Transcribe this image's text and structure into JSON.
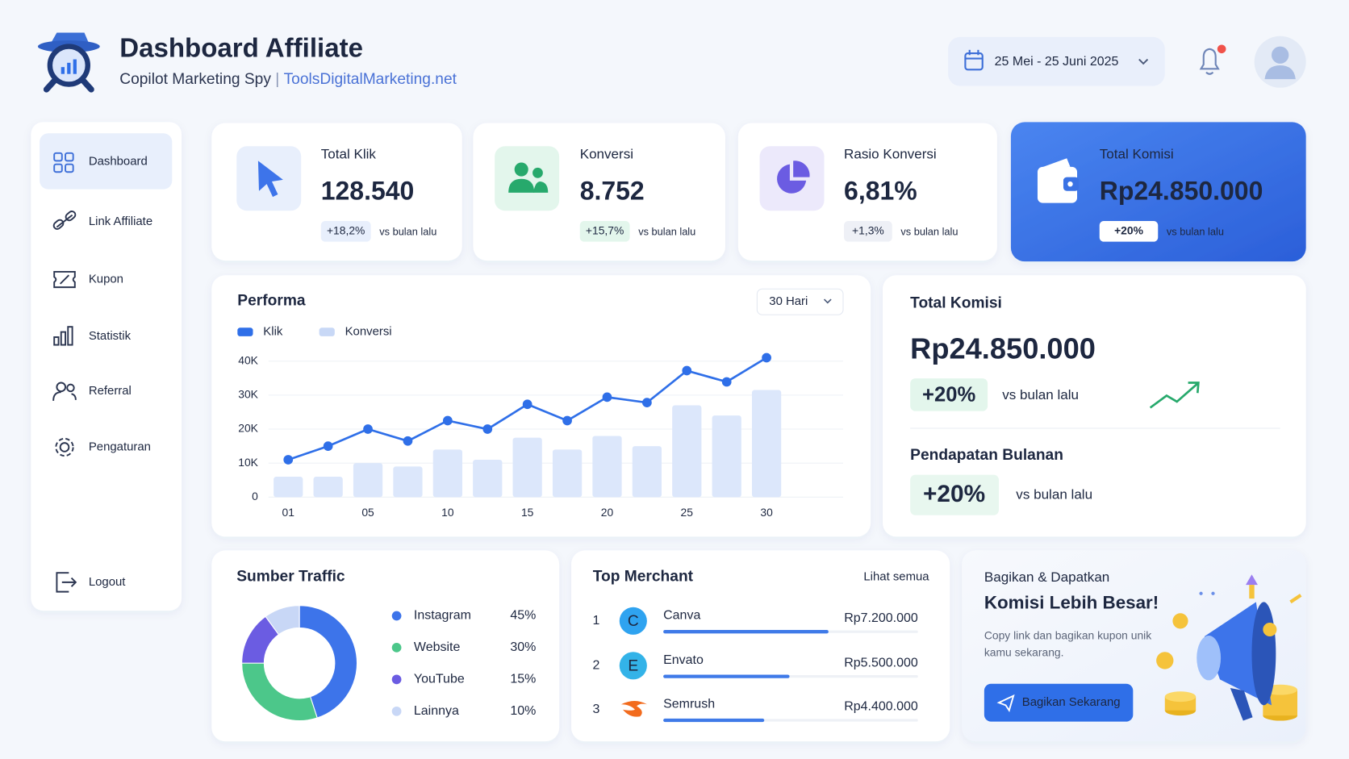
{
  "header": {
    "title": "Dashboard Affiliate",
    "subtitle": "Copilot Marketing Spy",
    "separator": "|",
    "site": "ToolsDigitalMarketing.net",
    "date_range": "25 Mei - 25 Juni 2025"
  },
  "sidebar": {
    "items": [
      "Dashboard",
      "Link Affiliate",
      "Kupon",
      "Statistik",
      "Referral",
      "Pengaturan"
    ],
    "logout": "Logout"
  },
  "stats": [
    {
      "label": "Total Klik",
      "value": "128.540",
      "change": "+18,2%",
      "note": "vs bulan lalu"
    },
    {
      "label": "Konversi",
      "value": "8.752",
      "change": "+15,7%",
      "note": "vs bulan lalu"
    },
    {
      "label": "Rasio Konversi",
      "value": "6,81%",
      "change": "+1,3%",
      "note": "vs bulan lalu"
    },
    {
      "label": "Total Komisi",
      "value": "Rp24.850.000",
      "change": "+20%",
      "note": "vs bulan lalu"
    }
  ],
  "commission": {
    "title": "Total Komisi",
    "value": "Rp24.850.000",
    "change": "+20%",
    "note": "vs bulan lalu",
    "monthly_title": "Pendapatan Bulanan",
    "monthly_change": "+20%",
    "monthly_note": "vs bulan lalu"
  },
  "promo": {
    "kicker": "Bagikan & Dapatkan",
    "title": "Komisi Lebih Besar!",
    "text": "Copy link dan bagikan kupon unik kamu sekarang.",
    "button": "Bagikan Sekarang"
  },
  "chart_data": [
    {
      "type": "combo",
      "title": "Performa",
      "range": "30 Hari",
      "categories": [
        "01",
        null,
        "05",
        null,
        "10",
        null,
        "15",
        null,
        "20",
        null,
        "25",
        null,
        "30"
      ],
      "series": [
        {
          "name": "Klik",
          "type": "line",
          "color": "#2f6fe8",
          "values": [
            11000,
            15000,
            20000,
            16500,
            22500,
            20000,
            27300,
            22500,
            29400,
            27800,
            37200,
            33900,
            41000
          ]
        },
        {
          "name": "Konversi",
          "type": "bar",
          "color": "#dce7fb",
          "values": [
            6000,
            6000,
            10000,
            9000,
            14000,
            11000,
            17500,
            14000,
            18000,
            15000,
            27000,
            24000,
            31500
          ]
        }
      ],
      "ylim": [
        0,
        42000
      ],
      "yticks": [
        0,
        {
          "value": 10000,
          "label": "10K"
        },
        {
          "value": 20000,
          "label": "20K"
        },
        {
          "value": 30000,
          "label": "30K"
        },
        {
          "value": 40000,
          "label": "40K"
        }
      ],
      "grid": true
    },
    {
      "type": "donut",
      "title": "Sumber Traffic",
      "categories": [
        "Instagram",
        "Website",
        "YouTube",
        "Lainnya"
      ],
      "values": [
        45,
        30,
        15,
        10
      ],
      "value_labels": [
        "45%",
        "30%",
        "15%",
        "10%"
      ],
      "colors": [
        "#3d74ea",
        "#4cc78a",
        "#6b5ce2",
        "#c8d7f6"
      ]
    },
    {
      "type": "bar",
      "orientation": "horizontal",
      "title": "Top Merchant",
      "link": "Lihat semua",
      "ranks": [
        1,
        2,
        3
      ],
      "icons": [
        "C",
        "E"
      ],
      "categories": [
        "Canva",
        "Envato",
        "Semrush"
      ],
      "values": [
        7200000,
        5500000,
        4400000
      ],
      "value_labels": [
        "Rp7.200.000",
        "Rp5.500.000",
        "Rp4.400.000"
      ],
      "color": "#3f7ae8"
    }
  ]
}
